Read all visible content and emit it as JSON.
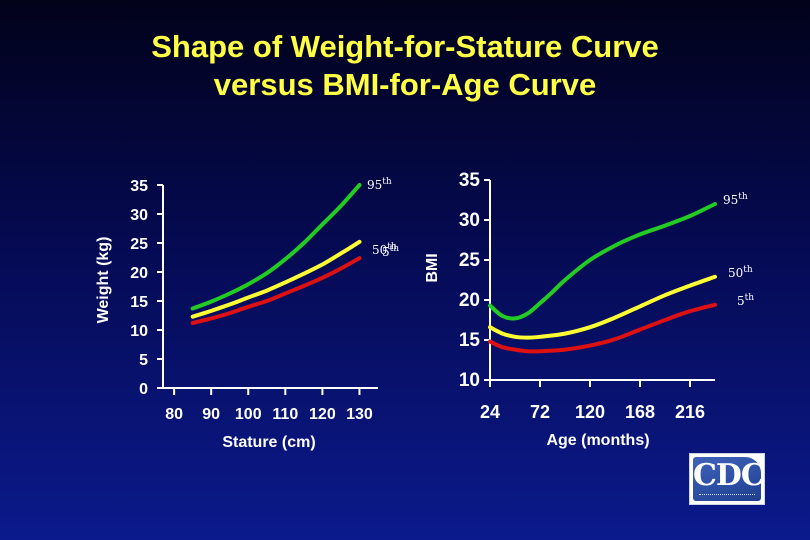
{
  "title": {
    "line1": "Shape of Weight-for-Stature Curve",
    "line2": "versus BMI-for-Age Curve"
  },
  "colors": {
    "title": "#ffff44",
    "text": "#ffffff",
    "p95": "#22cc22",
    "p50": "#ffff33",
    "p5": "#dd1111"
  },
  "logo": {
    "text": "CDC",
    "icon": "cdc-logo"
  },
  "chart_data": [
    {
      "type": "line",
      "xlabel": "Stature (cm)",
      "ylabel": "Weight (kg)",
      "xlim": [
        77,
        135
      ],
      "ylim": [
        0,
        35
      ],
      "xticks": [
        80,
        90,
        100,
        110,
        120,
        130
      ],
      "yticks": [
        0,
        5,
        10,
        15,
        20,
        25,
        30,
        35
      ],
      "grid": false,
      "series": [
        {
          "name": "95th",
          "key": "p95",
          "label_base": "95",
          "label_sup": "th",
          "x": [
            85,
            90,
            95,
            100,
            105,
            110,
            115,
            120,
            125,
            130
          ],
          "values": [
            13.7,
            14.9,
            16.3,
            17.9,
            19.8,
            22.2,
            25.0,
            28.2,
            31.4,
            35.0
          ]
        },
        {
          "name": "50th",
          "key": "p50",
          "label_base": "50",
          "label_sup": "th",
          "x": [
            85,
            90,
            95,
            100,
            105,
            110,
            115,
            120,
            125,
            130
          ],
          "values": [
            12.3,
            13.3,
            14.4,
            15.6,
            16.8,
            18.2,
            19.7,
            21.3,
            23.2,
            25.2
          ]
        },
        {
          "name": "5th",
          "key": "p5",
          "label_base": "5",
          "label_sup": "th",
          "x": [
            85,
            90,
            95,
            100,
            105,
            110,
            115,
            120,
            125,
            130
          ],
          "values": [
            11.2,
            12.0,
            12.9,
            14.0,
            15.0,
            16.3,
            17.6,
            19.0,
            20.6,
            22.4
          ]
        }
      ]
    },
    {
      "type": "line",
      "xlabel": "Age (months)",
      "ylabel": "BMI",
      "xlim": [
        24,
        240
      ],
      "ylim": [
        10,
        35
      ],
      "xticks": [
        24,
        72,
        120,
        168,
        216
      ],
      "yticks": [
        10,
        15,
        20,
        25,
        30,
        35
      ],
      "grid": false,
      "series": [
        {
          "name": "95th",
          "key": "p95",
          "label_base": "95",
          "label_sup": "th",
          "x": [
            24,
            36,
            48,
            60,
            72,
            84,
            96,
            120,
            144,
            168,
            192,
            216,
            240
          ],
          "values": [
            19.3,
            18.0,
            17.7,
            18.3,
            19.6,
            21.0,
            22.5,
            25.0,
            26.8,
            28.2,
            29.3,
            30.5,
            32.0
          ]
        },
        {
          "name": "50th",
          "key": "p50",
          "label_base": "50",
          "label_sup": "th",
          "x": [
            24,
            36,
            48,
            60,
            72,
            96,
            120,
            144,
            168,
            192,
            216,
            240
          ],
          "values": [
            16.6,
            15.8,
            15.4,
            15.3,
            15.4,
            15.8,
            16.6,
            17.8,
            19.2,
            20.6,
            21.8,
            22.9
          ]
        },
        {
          "name": "5th",
          "key": "p5",
          "label_base": "5",
          "label_sup": "th",
          "x": [
            24,
            36,
            48,
            60,
            72,
            96,
            120,
            144,
            168,
            192,
            216,
            240
          ],
          "values": [
            14.8,
            14.1,
            13.8,
            13.6,
            13.6,
            13.8,
            14.3,
            15.1,
            16.3,
            17.5,
            18.6,
            19.4
          ]
        }
      ]
    }
  ]
}
